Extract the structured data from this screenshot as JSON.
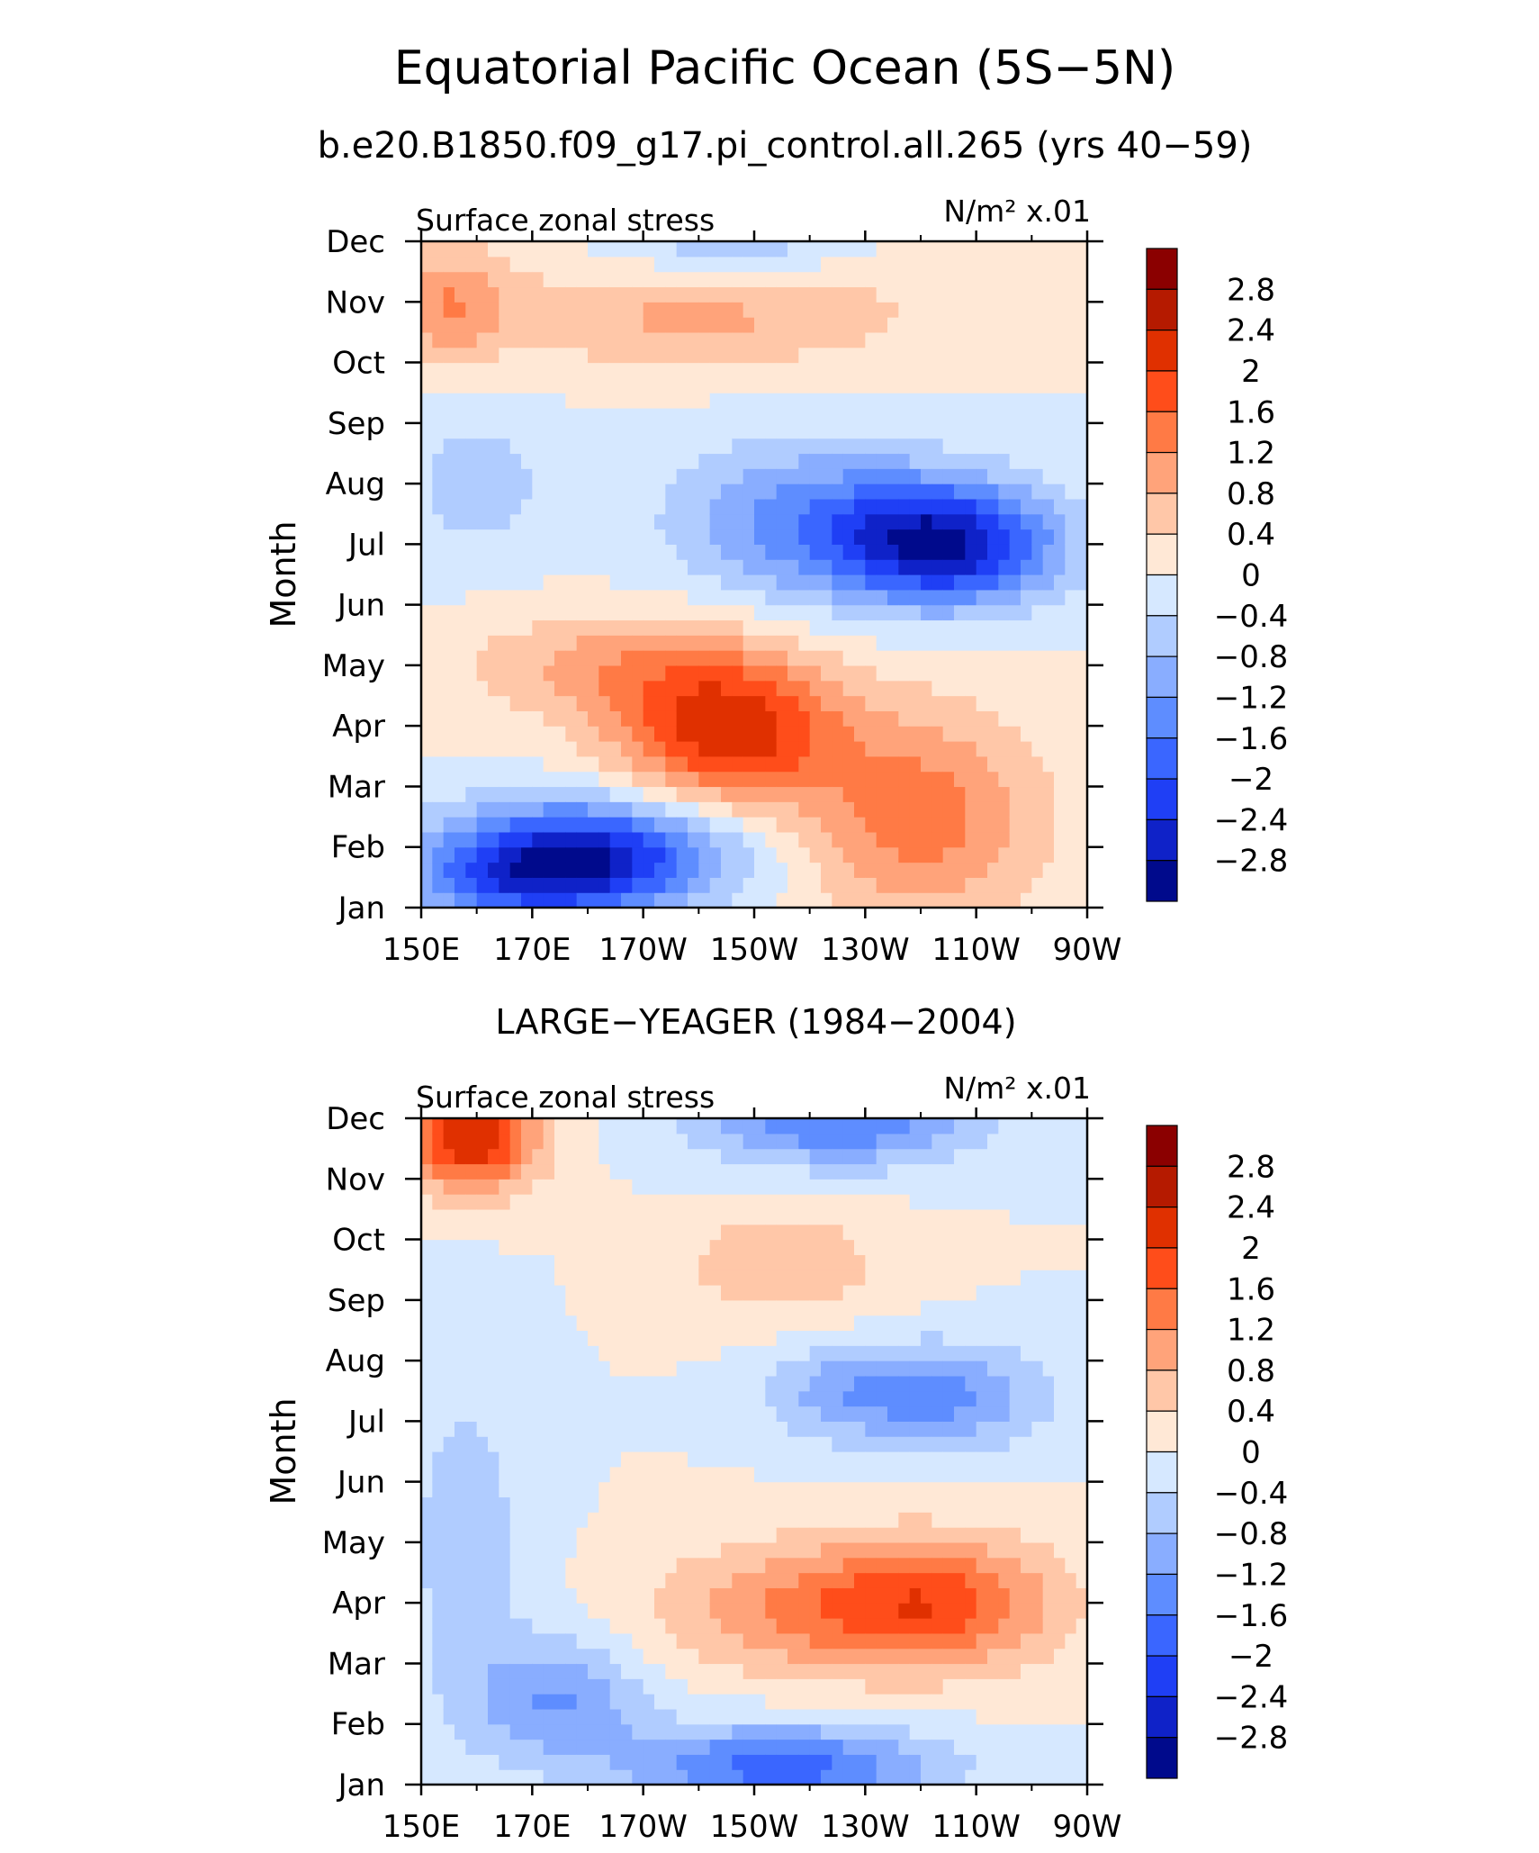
{
  "figure": {
    "title": "Equatorial Pacific Ocean (5S−5N)",
    "subtitle": "b.e20.B1850.f09_g17.pi_control.all.265 (yrs 40−59)"
  },
  "colorbar": {
    "labels": [
      "2.8",
      "2.4",
      "2",
      "1.6",
      "1.2",
      "0.8",
      "0.4",
      "0",
      "−0.4",
      "−0.8",
      "−1.2",
      "−1.6",
      "−2",
      "−2.4",
      "−2.8"
    ],
    "colors_top_to_bottom": [
      "#8b0000",
      "#b51a00",
      "#e03000",
      "#ff4d1a",
      "#ff7a45",
      "#ffa37a",
      "#ffc7a8",
      "#ffe8d6",
      "#d6e8ff",
      "#b0ccff",
      "#89adff",
      "#5e8dff",
      "#3a66ff",
      "#1f3ff5",
      "#0f22c8",
      "#000a8c"
    ]
  },
  "chart_data": [
    {
      "type": "heatmap",
      "title": "b.e20.B1850.f09_g17.pi_control.all.265 (yrs 40−59)",
      "left_label": "Surface zonal stress",
      "right_label": "N/m² x.01",
      "ylabel": "Month",
      "x_ticks": [
        "150E",
        "170E",
        "170W",
        "150W",
        "130W",
        "110W",
        "90W"
      ],
      "y_ticks": [
        "Jan",
        "Feb",
        "Mar",
        "Apr",
        "May",
        "Jun",
        "Jul",
        "Aug",
        "Sep",
        "Oct",
        "Nov",
        "Dec"
      ],
      "xlim": [
        150,
        270
      ],
      "ylim": [
        1,
        12
      ],
      "levels": [
        -2.8,
        -2.4,
        -2,
        -1.6,
        -1.2,
        -0.8,
        -0.4,
        0,
        0.4,
        0.8,
        1.2,
        1.6,
        2,
        2.4,
        2.8
      ],
      "features": [
        {
          "lon": 180,
          "month": 1.9,
          "value": -2.5,
          "r_lon": 26,
          "r_month": 0.9
        },
        {
          "lon": 168,
          "month": 1.4,
          "value": -1.2,
          "r_lon": 20,
          "r_month": 0.7
        },
        {
          "lon": 205,
          "month": 3.9,
          "value": 2.2,
          "r_lon": 20,
          "r_month": 1.2
        },
        {
          "lon": 240,
          "month": 2.5,
          "value": 1.4,
          "r_lon": 22,
          "r_month": 1.8
        },
        {
          "lon": 185,
          "month": 5.0,
          "value": 0.9,
          "r_lon": 28,
          "r_month": 0.9
        },
        {
          "lon": 245,
          "month": 7.0,
          "value": -2.6,
          "r_lon": 20,
          "r_month": 1.0
        },
        {
          "lon": 220,
          "month": 7.4,
          "value": -1.3,
          "r_lon": 25,
          "r_month": 1.3
        },
        {
          "lon": 160,
          "month": 8.0,
          "value": -0.6,
          "r_lon": 14,
          "r_month": 1.3
        },
        {
          "lon": 200,
          "month": 10.8,
          "value": 0.9,
          "r_lon": 40,
          "r_month": 0.9
        },
        {
          "lon": 155,
          "month": 11.0,
          "value": 1.0,
          "r_lon": 10,
          "r_month": 1.0
        },
        {
          "lon": 205,
          "month": 12.0,
          "value": -0.8,
          "r_lon": 20,
          "r_month": 0.7
        }
      ]
    },
    {
      "type": "heatmap",
      "title": "LARGE−YEAGER (1984−2004)",
      "left_label": "Surface zonal stress",
      "right_label": "N/m² x.01",
      "ylabel": "Month",
      "x_ticks": [
        "150E",
        "170E",
        "170W",
        "150W",
        "130W",
        "110W",
        "90W"
      ],
      "y_ticks": [
        "Jan",
        "Feb",
        "Mar",
        "Apr",
        "May",
        "Jun",
        "Jul",
        "Aug",
        "Sep",
        "Oct",
        "Nov",
        "Dec"
      ],
      "xlim": [
        150,
        270
      ],
      "ylim": [
        1,
        12
      ],
      "levels": [
        -2.8,
        -2.4,
        -2,
        -1.6,
        -1.2,
        -0.8,
        -0.4,
        0,
        0.4,
        0.8,
        1.2,
        1.6,
        2,
        2.4,
        2.8
      ],
      "features": [
        {
          "lon": 159,
          "month": 11.7,
          "value": 2.4,
          "r_lon": 12,
          "r_month": 0.9
        },
        {
          "lon": 243,
          "month": 4.0,
          "value": 1.7,
          "r_lon": 22,
          "r_month": 1.1
        },
        {
          "lon": 215,
          "month": 3.9,
          "value": 1.0,
          "r_lon": 25,
          "r_month": 1.1
        },
        {
          "lon": 215,
          "month": 9.6,
          "value": 0.7,
          "r_lon": 20,
          "r_month": 1.0
        },
        {
          "lon": 215,
          "month": 1.3,
          "value": -1.8,
          "r_lon": 28,
          "r_month": 0.7
        },
        {
          "lon": 175,
          "month": 2.4,
          "value": -1.2,
          "r_lon": 15,
          "r_month": 1.0
        },
        {
          "lon": 245,
          "month": 7.4,
          "value": -1.2,
          "r_lon": 18,
          "r_month": 0.9
        },
        {
          "lon": 225,
          "month": 7.5,
          "value": -0.8,
          "r_lon": 15,
          "r_month": 0.8
        },
        {
          "lon": 225,
          "month": 12.0,
          "value": -1.6,
          "r_lon": 25,
          "r_month": 0.8
        },
        {
          "lon": 158,
          "month": 5.0,
          "value": -0.6,
          "r_lon": 12,
          "r_month": 3.0
        }
      ]
    }
  ]
}
